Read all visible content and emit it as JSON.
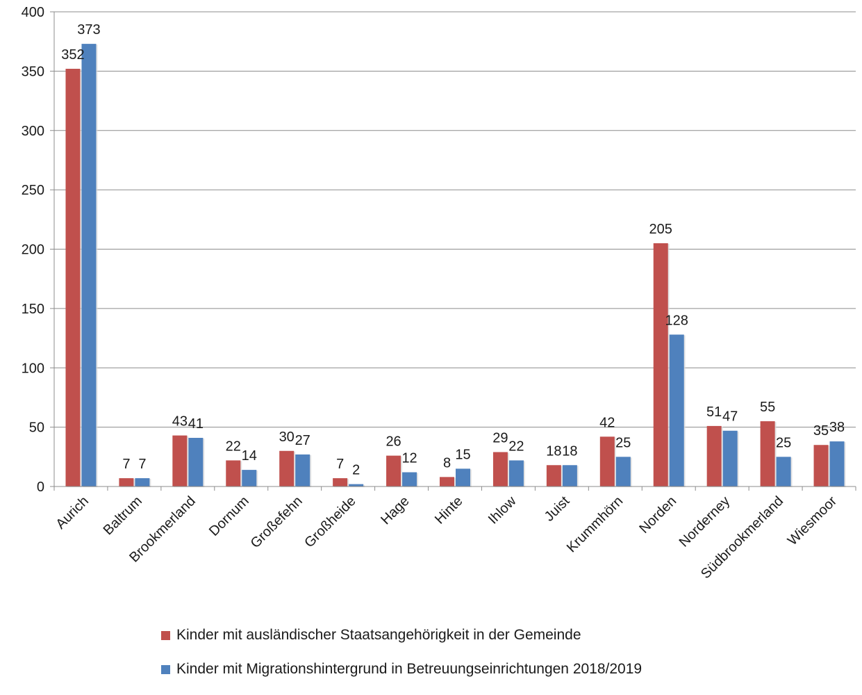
{
  "chart_data": {
    "type": "bar",
    "title": "",
    "xlabel": "",
    "ylabel": "",
    "ylim": [
      0,
      400
    ],
    "yticks": [
      0,
      50,
      100,
      150,
      200,
      250,
      300,
      350,
      400
    ],
    "grid": "horizontal",
    "legend_position": "bottom",
    "categories": [
      "Aurich",
      "Baltrum",
      "Brookmerland",
      "Dornum",
      "Großefehn",
      "Großheide",
      "Hage",
      "Hinte",
      "Ihlow",
      "Juist",
      "Krummhörn",
      "Norden",
      "Norderney",
      "Südbrookmerland",
      "Wiesmoor"
    ],
    "series": [
      {
        "name": "Kinder mit ausländischer Staatsangehörigkeit in der Gemeinde",
        "color": "#c0504d",
        "values": [
          352,
          7,
          43,
          22,
          30,
          7,
          26,
          8,
          29,
          18,
          42,
          205,
          51,
          55,
          35
        ]
      },
      {
        "name": "Kinder mit Migrationshintergrund in Betreuungseinrichtungen 2018/2019",
        "color": "#4f81bd",
        "values": [
          373,
          7,
          41,
          14,
          27,
          2,
          12,
          15,
          22,
          18,
          25,
          128,
          47,
          25,
          38
        ]
      }
    ]
  }
}
